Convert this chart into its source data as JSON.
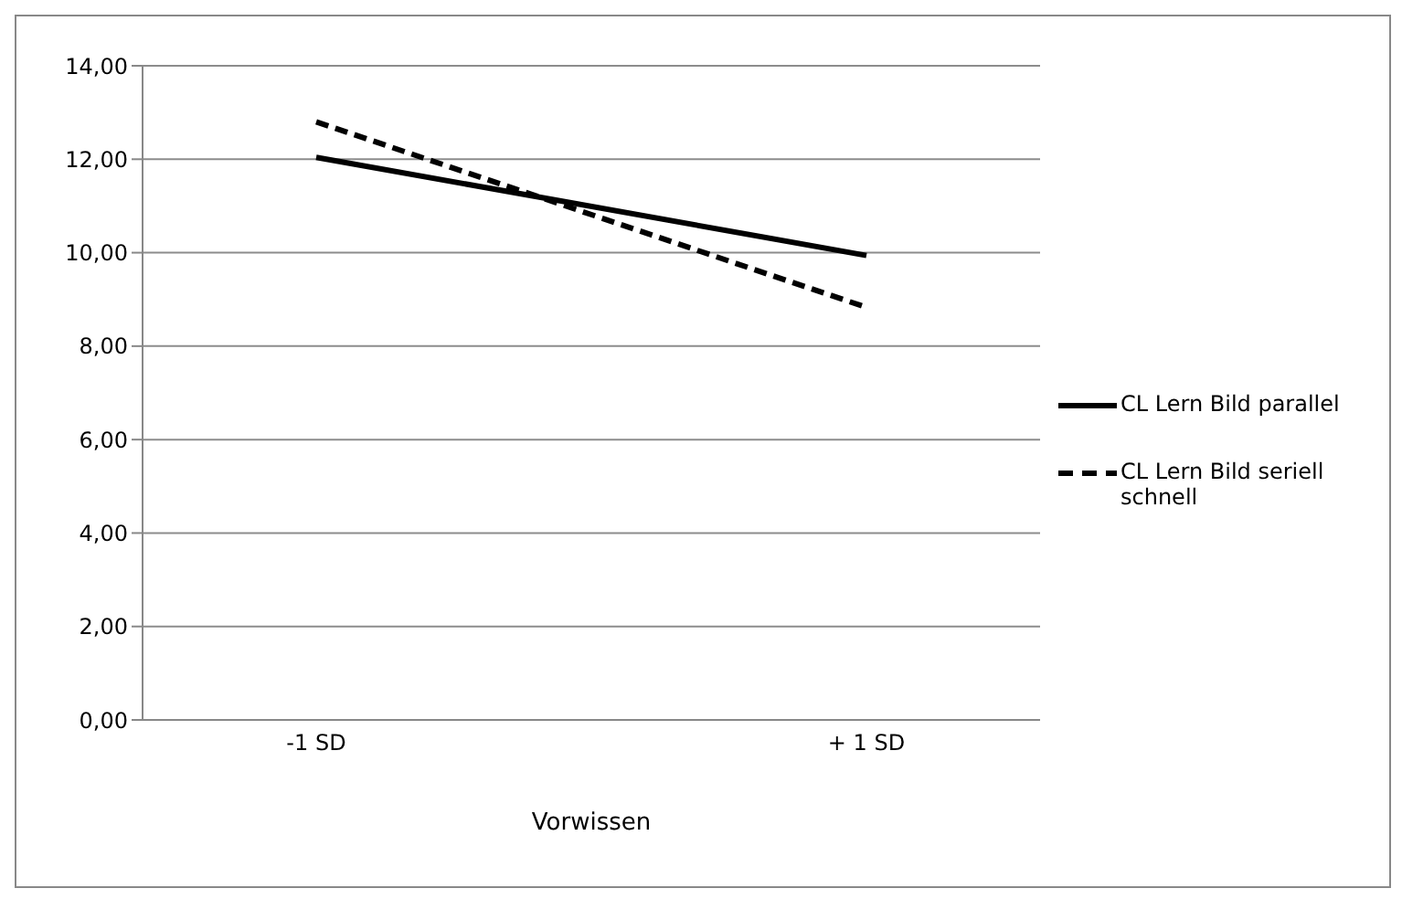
{
  "chart_data": {
    "type": "line",
    "categories": [
      "-1 SD",
      "+ 1 SD"
    ],
    "xlabel": "Vorwissen",
    "series": [
      {
        "name": "CL Lern Bild parallel",
        "color": "#000000",
        "values": [
          12.04,
          9.94
        ],
        "line_style": "solid"
      },
      {
        "name": "CL Lern Bild seriell schnell",
        "color": "#000000",
        "values": [
          12.8,
          8.83
        ],
        "line_style": "dashed"
      }
    ],
    "ylim": [
      0,
      14
    ],
    "yticks": [
      {
        "value": 0,
        "label": "0,00"
      },
      {
        "value": 2,
        "label": "2,00"
      },
      {
        "value": 4,
        "label": "4,00"
      },
      {
        "value": 6,
        "label": "6,00"
      },
      {
        "value": 8,
        "label": "8,00"
      },
      {
        "value": 10,
        "label": "10,00"
      },
      {
        "value": 12,
        "label": "12,00"
      },
      {
        "value": 14,
        "label": "14,00"
      }
    ],
    "grid": "y",
    "legend": "right",
    "marker": "none"
  }
}
